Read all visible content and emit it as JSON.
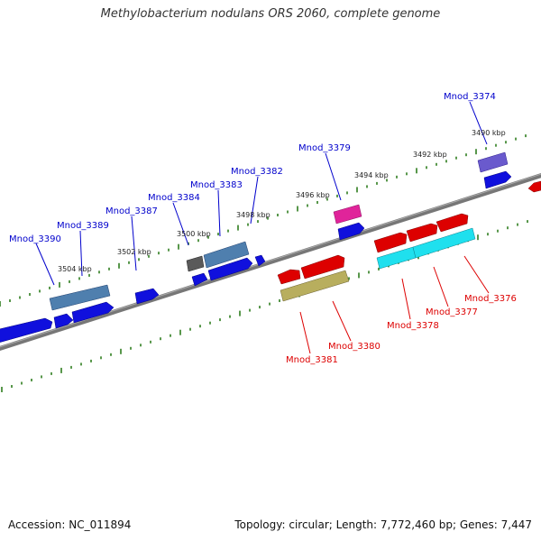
{
  "title": "Methylobacterium nodulans ORS 2060, complete genome",
  "footer": {
    "accession": "Accession: NC_011894",
    "summary": "Topology: circular; Length: 7,772,460 bp; Genes: 7,447"
  },
  "colors": {
    "forward_label": "#0000cc",
    "reverse_label": "#dd0000",
    "backbone": "#777777",
    "tick": "#2e7d1e"
  },
  "scale_labels": [
    "3504 kbp",
    "3502 kbp",
    "3500 kbp",
    "3498 kbp",
    "3496 kbp",
    "3494 kbp",
    "3492 kbp",
    "3490 kbp"
  ],
  "forward_genes": [
    "Mnod_3390",
    "Mnod_3389",
    "Mnod_3387",
    "Mnod_3384",
    "Mnod_3383",
    "Mnod_3382",
    "Mnod_3379",
    "Mnod_3374"
  ],
  "reverse_genes": [
    "Mnod_3381",
    "Mnod_3380",
    "Mnod_3378",
    "Mnod_3377",
    "Mnod_3376"
  ]
}
